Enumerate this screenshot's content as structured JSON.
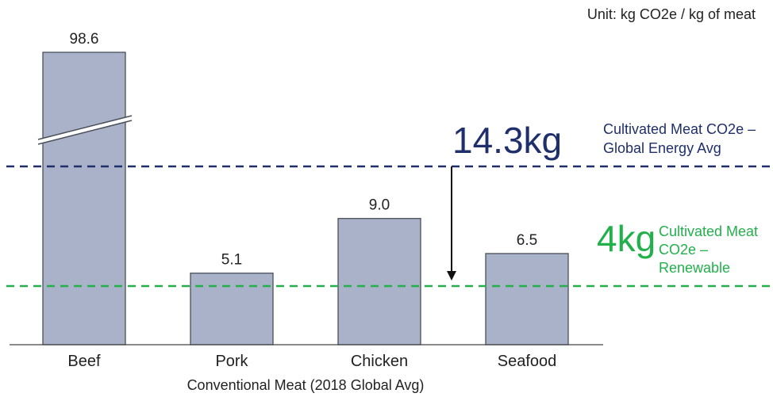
{
  "unit_text": "Unit: kg CO2e / kg of meat",
  "chart_data": {
    "type": "bar",
    "categories": [
      "Beef",
      "Pork",
      "Chicken",
      "Seafood"
    ],
    "values": [
      98.6,
      5.1,
      9.0,
      6.5
    ],
    "value_labels": [
      "98.6",
      "5.1",
      "9.0",
      "6.5"
    ],
    "xlabel": "Conventional Meat (2018 Global Avg)",
    "ylabel": "",
    "ylim": [
      0,
      16.3
    ],
    "axis_break": "Beef",
    "bar_color": "#a9b2c8",
    "reference_lines": [
      {
        "value": 14.3,
        "big_label": "14.3kg",
        "label_lines": [
          "Cultivated Meat CO2e –",
          "Global Energy Avg"
        ],
        "color": "#1f2f6b",
        "style": "dashed"
      },
      {
        "value": 4,
        "big_label": "4kg",
        "label_lines": [
          "Cultivated Meat",
          "CO2e –",
          "Renewable"
        ],
        "color": "#22b04b",
        "style": "dashed"
      }
    ],
    "arrow": {
      "from": 14.3,
      "to": 4,
      "color": "#111111"
    }
  }
}
